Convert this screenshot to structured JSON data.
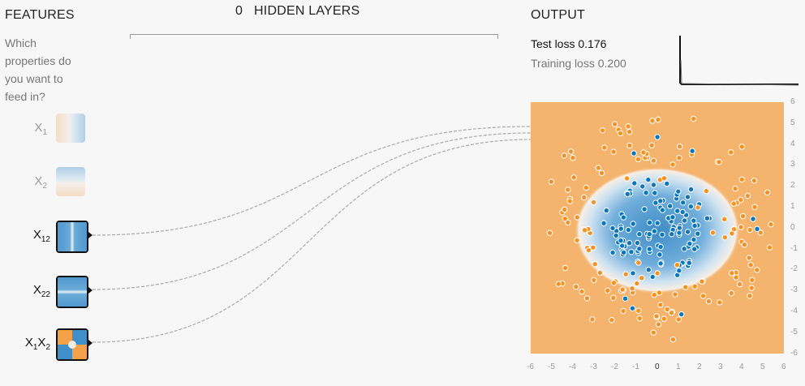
{
  "features": {
    "title": "FEATURES",
    "description": "Which properties do you want to feed in?",
    "items": [
      {
        "label": "X1",
        "base": "X",
        "sub": "1",
        "active": false
      },
      {
        "label": "X2",
        "base": "X",
        "sub": "2",
        "active": false
      },
      {
        "label": "X12",
        "base": "X",
        "sub": "12",
        "active": true
      },
      {
        "label": "X22",
        "base": "X",
        "sub": "22",
        "active": true
      },
      {
        "label": "X1X2",
        "base": "X",
        "sub": "1X2",
        "active": true
      }
    ]
  },
  "hidden": {
    "count": "0",
    "label": "HIDDEN LAYERS"
  },
  "output": {
    "title": "OUTPUT",
    "test_loss": "Test loss 0.176",
    "training_loss": "Training loss 0.200",
    "x_ticks": [
      "-6",
      "-5",
      "-4",
      "-3",
      "-2",
      "-1",
      "0",
      "1",
      "2",
      "3",
      "4",
      "5",
      "6"
    ],
    "y_ticks": [
      "6",
      "5",
      "4",
      "3",
      "2",
      "1",
      "0",
      "-1",
      "-2",
      "-3",
      "-4",
      "-5",
      "-6"
    ]
  },
  "colors": {
    "positive": "#0877bd",
    "negative": "#f59322",
    "background_orange": "#f5b46e",
    "blue_light": "#c9e0f0"
  }
}
